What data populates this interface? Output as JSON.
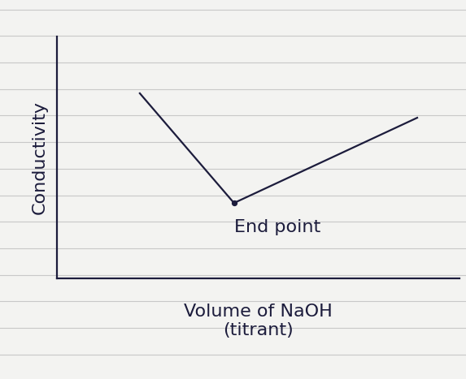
{
  "chart_data": {
    "type": "line",
    "y_label": "Conductivity",
    "x_label": "Volume of NaOH\n(titrant)",
    "x": [
      2.06,
      4.4,
      8.95
    ],
    "values": [
      7.65,
      3.12,
      6.64
    ],
    "color": "#1c1c3c",
    "xlim": [
      0,
      10
    ],
    "ylim": [
      0,
      10
    ],
    "xticks": [],
    "yticks": [],
    "tick_labels": false,
    "grid": false,
    "annotations": [
      {
        "text": "End point",
        "x": 4.4,
        "y": 3.12
      }
    ]
  }
}
